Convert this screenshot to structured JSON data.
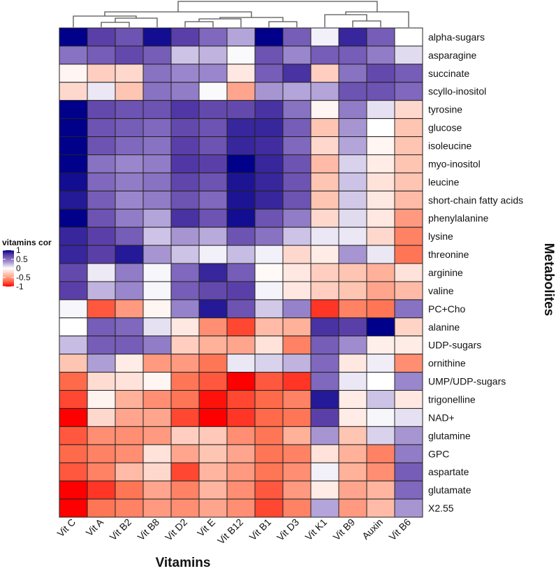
{
  "chart_data": {
    "type": "heatmap",
    "xlabel": "Vitamins",
    "ylabel": "Metabolites",
    "legend": {
      "title": "vitamins cor",
      "ticks": [
        "1",
        "0.5",
        "0",
        "-0.5",
        "-1"
      ],
      "range": [
        -1,
        1
      ],
      "placement": "left"
    },
    "colors": {
      "low": "#ff0000",
      "mid": "#ffffff",
      "high": "#00008b"
    },
    "columns": [
      "Vit C",
      "Vit A",
      "Vit B2",
      "Vit B8",
      "Vit D2",
      "Vit E",
      "Vit B12",
      "Vit B1",
      "Vit D3",
      "Vit K1",
      "Vit B9",
      "Auxin",
      "Vit B6"
    ],
    "rows": [
      "alpha-sugars",
      "asparagine",
      "succinate",
      "scyllo-inositol",
      "tyrosine",
      "glucose",
      "isoleucine",
      "myo-inositol",
      "leucine",
      "short-chain fatty acids",
      "phenylalanine",
      "lysine",
      "threonine",
      "arginine",
      "valine",
      "PC+Cho",
      "alanine",
      "UDP-sugars",
      "ornithine",
      "UMP/UDP-sugars",
      "trigonelline",
      "NAD+",
      "glutamine",
      "GPC",
      "aspartate",
      "glutamate",
      "X2.55"
    ],
    "values": [
      [
        1.0,
        0.75,
        0.65,
        0.95,
        0.75,
        0.55,
        0.3,
        1.0,
        0.6,
        0.05,
        0.85,
        0.6,
        0.0
      ],
      [
        0.5,
        0.6,
        0.7,
        0.6,
        0.2,
        0.25,
        0.02,
        0.65,
        0.4,
        0.6,
        0.6,
        0.45,
        0.12
      ],
      [
        -0.05,
        -0.25,
        -0.2,
        0.5,
        0.4,
        0.4,
        -0.12,
        0.6,
        0.8,
        -0.25,
        0.5,
        0.7,
        0.6
      ],
      [
        -0.2,
        0.08,
        -0.3,
        0.5,
        0.45,
        0.02,
        -0.45,
        0.35,
        0.3,
        0.3,
        0.65,
        0.65,
        0.55
      ],
      [
        1.0,
        0.7,
        0.65,
        0.65,
        0.78,
        0.7,
        0.7,
        0.8,
        0.5,
        -0.05,
        0.45,
        0.1,
        -0.2
      ],
      [
        1.0,
        0.65,
        0.6,
        0.55,
        0.7,
        0.65,
        0.85,
        0.85,
        0.6,
        -0.3,
        0.35,
        0.0,
        -0.3
      ],
      [
        1.0,
        0.65,
        0.55,
        0.5,
        0.75,
        0.65,
        0.85,
        0.82,
        0.55,
        -0.2,
        0.3,
        -0.05,
        -0.3
      ],
      [
        1.0,
        0.5,
        0.4,
        0.45,
        0.78,
        0.75,
        1.0,
        0.85,
        0.65,
        -0.35,
        0.15,
        -0.1,
        -0.3
      ],
      [
        0.95,
        0.55,
        0.45,
        0.5,
        0.72,
        0.65,
        0.92,
        0.85,
        0.65,
        -0.3,
        0.2,
        -0.15,
        -0.3
      ],
      [
        0.9,
        0.6,
        0.4,
        0.45,
        0.65,
        0.55,
        0.92,
        0.85,
        0.65,
        -0.3,
        0.18,
        -0.12,
        -0.35
      ],
      [
        1.0,
        0.65,
        0.45,
        0.3,
        0.8,
        0.65,
        0.95,
        0.65,
        0.45,
        -0.2,
        0.12,
        -0.12,
        -0.5
      ],
      [
        0.85,
        0.75,
        0.6,
        0.2,
        0.35,
        0.28,
        0.65,
        0.5,
        0.2,
        0.08,
        0.08,
        -0.2,
        -0.6
      ],
      [
        0.85,
        0.75,
        0.9,
        0.35,
        0.2,
        0.05,
        0.22,
        0.05,
        -0.2,
        -0.1,
        0.35,
        0.08,
        -0.65
      ],
      [
        0.7,
        0.07,
        0.45,
        0.03,
        0.55,
        0.85,
        0.6,
        -0.03,
        -0.12,
        -0.25,
        -0.3,
        -0.4,
        -0.15
      ],
      [
        0.75,
        0.25,
        0.4,
        0.03,
        0.6,
        0.7,
        0.75,
        0.04,
        -0.12,
        -0.25,
        -0.3,
        -0.45,
        -0.35
      ],
      [
        0.03,
        -0.75,
        -0.5,
        -0.05,
        0.42,
        0.9,
        0.65,
        0.18,
        0.42,
        -0.85,
        -0.6,
        -0.65,
        0.5
      ],
      [
        0.0,
        0.6,
        0.55,
        0.1,
        -0.12,
        -0.55,
        -0.8,
        -0.35,
        -0.4,
        0.8,
        0.75,
        1.0,
        -0.22
      ],
      [
        0.22,
        0.6,
        0.6,
        0.45,
        -0.25,
        -0.4,
        -0.45,
        -0.15,
        -0.6,
        0.6,
        0.38,
        -0.08,
        -0.1
      ],
      [
        -0.3,
        0.32,
        -0.1,
        -0.5,
        -0.5,
        -0.65,
        0.08,
        0.15,
        0.25,
        0.55,
        -0.12,
        0.06,
        -0.55
      ],
      [
        -0.7,
        -0.18,
        -0.15,
        -0.05,
        -0.65,
        -0.75,
        -1.0,
        -0.75,
        -0.85,
        0.55,
        0.08,
        0.0,
        0.4
      ],
      [
        -0.8,
        -0.06,
        -0.4,
        -0.55,
        -0.65,
        -0.95,
        -0.8,
        -0.7,
        -0.6,
        0.9,
        -0.1,
        0.2,
        -0.12
      ],
      [
        -1.0,
        -0.2,
        -0.45,
        -0.45,
        -0.8,
        -1.0,
        -0.85,
        -0.7,
        -0.65,
        0.75,
        -0.1,
        0.03,
        0.1
      ],
      [
        -0.75,
        -0.55,
        -0.55,
        -0.5,
        -0.25,
        -0.28,
        -0.55,
        -0.65,
        -0.4,
        0.35,
        -0.3,
        0.15,
        0.35
      ],
      [
        -0.7,
        -0.6,
        -0.55,
        -0.15,
        -0.45,
        -0.3,
        -0.45,
        -0.65,
        -0.6,
        -0.15,
        -0.4,
        -0.6,
        0.45
      ],
      [
        -0.75,
        -0.6,
        -0.35,
        -0.2,
        -0.8,
        -0.38,
        -0.5,
        -0.65,
        -0.55,
        0.05,
        -0.4,
        -0.55,
        0.6
      ],
      [
        -1.0,
        -0.85,
        -0.65,
        -0.45,
        -0.6,
        -0.38,
        -0.55,
        -0.75,
        -0.5,
        -0.1,
        -0.45,
        -0.38,
        0.55
      ],
      [
        -1.0,
        -0.65,
        -0.6,
        -0.5,
        -0.55,
        -0.45,
        -0.55,
        -0.8,
        -0.6,
        0.3,
        -0.5,
        -0.35,
        0.35
      ]
    ],
    "dendrogram": {
      "h": 37,
      "c": [
        {
          "h": 22,
          "c": [
            {
              "h": 16,
              "c": [
                "Vit C",
                {
                  "h": 13,
                  "c": [
                    {
                      "h": 7,
                      "c": [
                        "Vit A",
                        "Vit B2"
                      ]
                    },
                    "Vit B8"
                  ]
                }
              ]
            },
            {
              "h": 14,
              "c": [
                {
                  "h": 12,
                  "c": [
                    {
                      "h": 8,
                      "c": [
                        "Vit D2",
                        "Vit E"
                      ]
                    },
                    "Vit B12"
                  ]
                },
                {
                  "h": 8,
                  "c": [
                    "Vit B1",
                    "Vit D3"
                  ]
                }
              ]
            }
          ]
        },
        {
          "h": 22,
          "c": [
            {
              "h": 18,
              "c": [
                "Vit K1",
                {
                  "h": 9,
                  "c": [
                    "Vit B9",
                    "Auxin"
                  ]
                }
              ]
            },
            "Vit B6"
          ]
        }
      ]
    }
  }
}
